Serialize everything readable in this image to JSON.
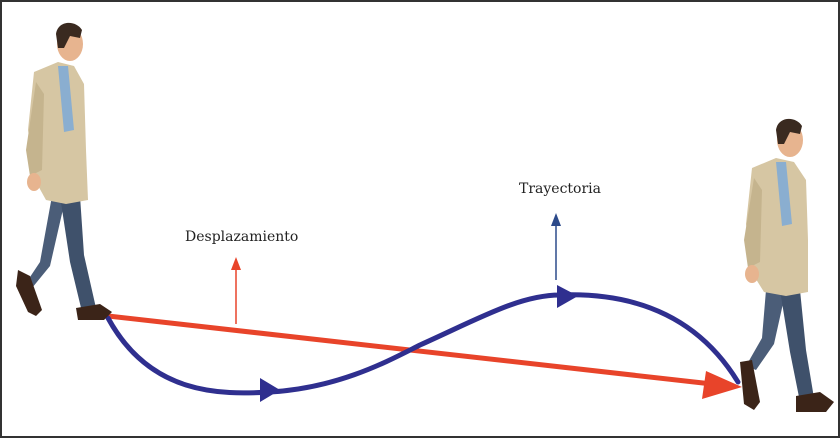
{
  "labels": {
    "displacement": "Desplazamiento",
    "trajectory": "Trayectoria"
  },
  "colors": {
    "displacement": "#e8442a",
    "trajectory": "#2f2f8f",
    "jacket": "#d6c6a3",
    "trousers": "#4b5d78",
    "skin": "#e7b48f",
    "hair": "#3a2a20",
    "shoes": "#3b2418",
    "border": "#333333"
  },
  "icons": [
    "walking-man-start",
    "walking-man-end"
  ]
}
